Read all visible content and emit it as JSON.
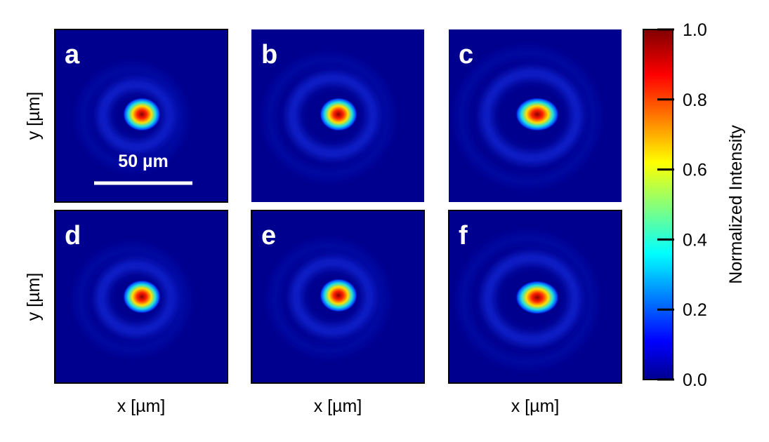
{
  "chart_data": {
    "type": "image-grid",
    "panels": [
      "a",
      "b",
      "c",
      "d",
      "e",
      "f"
    ],
    "x_label": "x [µm]",
    "y_label": "y [µm]",
    "scale_bar": "50 µm",
    "colormap": "jet",
    "colorbar": {
      "label": "Normalized Intensity",
      "lim": [
        0,
        1
      ],
      "ticks": [
        {
          "value": 0,
          "label": "0.0"
        },
        {
          "value": 0.2,
          "label": "0.2"
        },
        {
          "value": 0.4,
          "label": "0.4"
        },
        {
          "value": 0.6,
          "label": "0.6"
        },
        {
          "value": 0.8,
          "label": "0.8"
        },
        {
          "value": 1,
          "label": "1.0"
        }
      ]
    }
  }
}
